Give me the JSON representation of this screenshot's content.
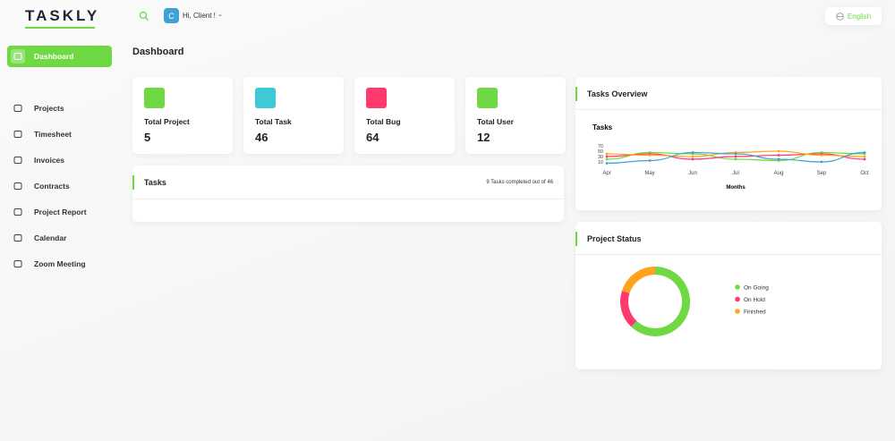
{
  "header": {
    "logo": "TASKLY",
    "avatar": "C",
    "greeting": "Hi, Client !",
    "language": "English"
  },
  "sidebar": [
    "Dashboard",
    "Projects",
    "Timesheet",
    "Invoices",
    "Contracts",
    "Project Report",
    "Calendar",
    "Zoom Meeting"
  ],
  "page_title": "Dashboard",
  "stats": [
    {
      "label": "Total Project",
      "value": "5"
    },
    {
      "label": "Total Task",
      "value": "46"
    },
    {
      "label": "Total Bug",
      "value": "64"
    },
    {
      "label": "Total User",
      "value": "12"
    }
  ],
  "tasks_panel": {
    "title": "Tasks",
    "summary": "9 Tasks completed out of 46"
  },
  "panels": {
    "overview_title": "Tasks Overview",
    "status_title": "Project Status"
  },
  "chart_data": [
    {
      "type": "line",
      "title": "Tasks",
      "x_label": "Months",
      "categories": [
        "Apr",
        "May",
        "Jun",
        "Jul",
        "Aug",
        "Sep",
        "Oct"
      ],
      "series": [
        {
          "color": "#6fd943",
          "values": [
            20,
            45,
            40,
            20,
            15,
            45,
            40
          ]
        },
        {
          "color": "#ff3a6e",
          "values": [
            30,
            40,
            20,
            30,
            35,
            40,
            20
          ]
        },
        {
          "color": "#ffa21d",
          "values": [
            40,
            35,
            30,
            45,
            50,
            35,
            30
          ]
        },
        {
          "color": "#3ea2d6",
          "values": [
            5,
            15,
            45,
            40,
            20,
            10,
            45
          ]
        }
      ],
      "ylim": [
        0,
        70
      ],
      "yticks": [
        10,
        30,
        50,
        70
      ]
    },
    {
      "type": "pie",
      "categories": [
        "On Going",
        "On Hold",
        "Finished"
      ],
      "colors": [
        "#6fd943",
        "#ff3a6e",
        "#ffa21d"
      ],
      "values": [
        62,
        18,
        20
      ]
    }
  ]
}
